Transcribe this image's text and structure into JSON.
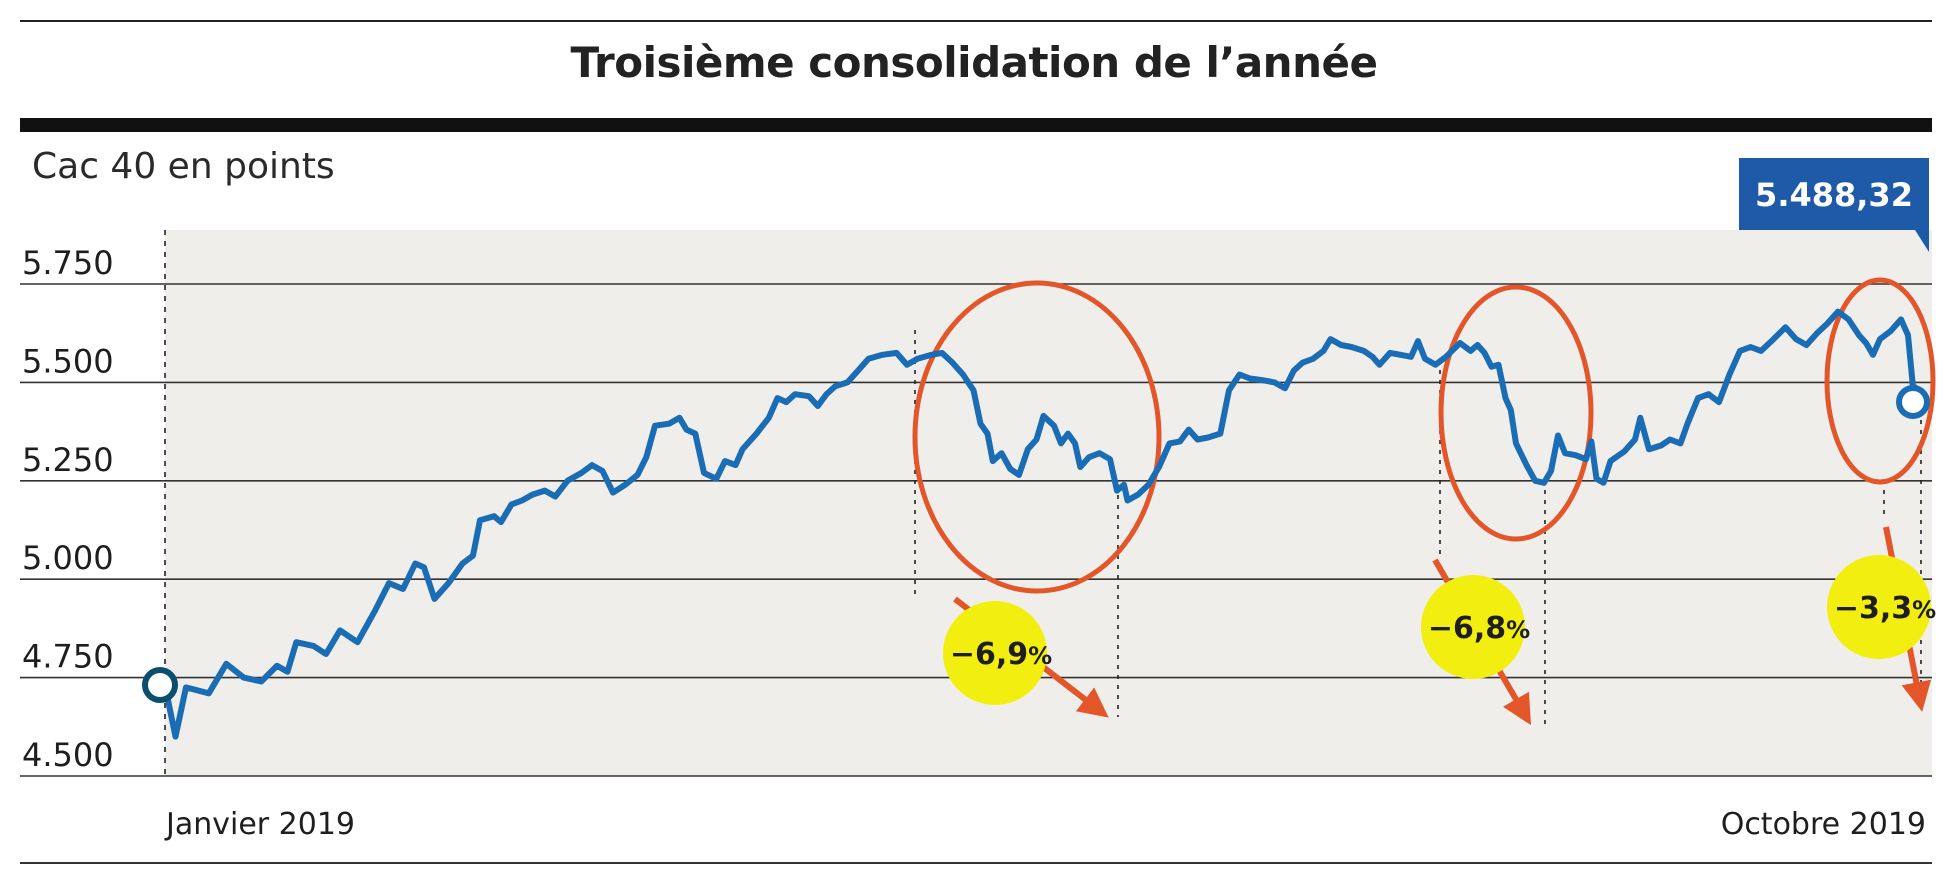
{
  "header": {
    "title": "Troisième consolidation de l’année",
    "unit_label": "Cac 40 en points"
  },
  "colors": {
    "line": "#1a6db5",
    "plot_background": "#efeeeb",
    "circle": "#e2562a",
    "badge": "#f2ee0f",
    "value_box": "#1f5aa8",
    "marker": "#0b4f6c"
  },
  "chart_data": {
    "type": "line",
    "title": "Troisième consolidation de l’année",
    "ylabel": "Cac 40 en points",
    "ylim": [
      4500,
      5750
    ],
    "y_ticks": [
      {
        "value": 4500,
        "label": "4.500"
      },
      {
        "value": 4750,
        "label": "4.750"
      },
      {
        "value": 5000,
        "label": "5.000"
      },
      {
        "value": 5250,
        "label": "5.250"
      },
      {
        "value": 5500,
        "label": "5.500"
      },
      {
        "value": 5750,
        "label": "5.750"
      }
    ],
    "grid": true,
    "x_labels": {
      "start": "Janvier 2019",
      "end": "Octobre 2019"
    },
    "x_range": [
      "2019-01-02",
      "2019-10-09"
    ],
    "series": [
      {
        "values": [
          [
            0.0,
            4730
          ],
          [
            0.6,
            4600
          ],
          [
            1.2,
            4725
          ],
          [
            2.5,
            4710
          ],
          [
            3.5,
            4785
          ],
          [
            4.5,
            4750
          ],
          [
            5.5,
            4740
          ],
          [
            6.4,
            4780
          ],
          [
            7.0,
            4765
          ],
          [
            7.5,
            4840
          ],
          [
            8.5,
            4830
          ],
          [
            9.2,
            4810
          ],
          [
            10.0,
            4870
          ],
          [
            11.0,
            4840
          ],
          [
            12.0,
            4920
          ],
          [
            12.8,
            4990
          ],
          [
            13.6,
            4975
          ],
          [
            14.3,
            5040
          ],
          [
            14.8,
            5030
          ],
          [
            15.4,
            4950
          ],
          [
            16.2,
            4990
          ],
          [
            17.0,
            5040
          ],
          [
            17.6,
            5060
          ],
          [
            18.0,
            5150
          ],
          [
            18.8,
            5160
          ],
          [
            19.2,
            5145
          ],
          [
            19.8,
            5190
          ],
          [
            20.4,
            5200
          ],
          [
            21.0,
            5215
          ],
          [
            21.7,
            5225
          ],
          [
            22.3,
            5210
          ],
          [
            23.0,
            5250
          ],
          [
            23.8,
            5270
          ],
          [
            24.4,
            5290
          ],
          [
            25.0,
            5275
          ],
          [
            25.6,
            5220
          ],
          [
            26.3,
            5240
          ],
          [
            27.0,
            5265
          ],
          [
            27.5,
            5310
          ],
          [
            28.0,
            5390
          ],
          [
            28.8,
            5395
          ],
          [
            29.4,
            5410
          ],
          [
            29.8,
            5380
          ],
          [
            30.3,
            5370
          ],
          [
            30.8,
            5270
          ],
          [
            31.5,
            5255
          ],
          [
            32.0,
            5300
          ],
          [
            32.6,
            5290
          ],
          [
            33.0,
            5330
          ],
          [
            33.8,
            5370
          ],
          [
            34.5,
            5410
          ],
          [
            35.0,
            5460
          ],
          [
            35.5,
            5450
          ],
          [
            36.0,
            5470
          ],
          [
            36.8,
            5465
          ],
          [
            37.3,
            5440
          ],
          [
            37.8,
            5470
          ],
          [
            38.3,
            5490
          ],
          [
            39.0,
            5500
          ],
          [
            39.6,
            5530
          ],
          [
            40.2,
            5560
          ],
          [
            41.0,
            5570
          ],
          [
            41.8,
            5575
          ],
          [
            42.4,
            5545
          ],
          [
            43.0,
            5560
          ],
          [
            43.8,
            5570
          ],
          [
            44.4,
            5575
          ],
          [
            45.0,
            5550
          ],
          [
            45.6,
            5520
          ],
          [
            46.2,
            5480
          ],
          [
            46.6,
            5395
          ],
          [
            47.0,
            5370
          ],
          [
            47.3,
            5300
          ],
          [
            47.8,
            5320
          ],
          [
            48.3,
            5280
          ],
          [
            48.8,
            5265
          ],
          [
            49.3,
            5330
          ],
          [
            49.8,
            5355
          ],
          [
            50.2,
            5415
          ],
          [
            50.8,
            5390
          ],
          [
            51.2,
            5345
          ],
          [
            51.6,
            5370
          ],
          [
            52.0,
            5345
          ],
          [
            52.3,
            5285
          ],
          [
            52.8,
            5310
          ],
          [
            53.4,
            5320
          ],
          [
            54.0,
            5305
          ],
          [
            54.4,
            5225
          ],
          [
            54.8,
            5240
          ],
          [
            55.0,
            5200
          ],
          [
            55.6,
            5215
          ],
          [
            56.2,
            5240
          ],
          [
            56.8,
            5285
          ],
          [
            57.4,
            5345
          ],
          [
            58.0,
            5350
          ],
          [
            58.5,
            5380
          ],
          [
            59.0,
            5355
          ],
          [
            59.6,
            5360
          ],
          [
            60.3,
            5370
          ],
          [
            60.8,
            5480
          ],
          [
            61.4,
            5520
          ],
          [
            62.0,
            5510
          ],
          [
            62.8,
            5505
          ],
          [
            63.4,
            5500
          ],
          [
            64.0,
            5485
          ],
          [
            64.5,
            5530
          ],
          [
            65.0,
            5550
          ],
          [
            65.6,
            5560
          ],
          [
            66.2,
            5580
          ],
          [
            66.6,
            5610
          ],
          [
            67.2,
            5595
          ],
          [
            67.8,
            5590
          ],
          [
            68.5,
            5580
          ],
          [
            69.0,
            5565
          ],
          [
            69.4,
            5545
          ],
          [
            70.0,
            5575
          ],
          [
            70.6,
            5570
          ],
          [
            71.2,
            5565
          ],
          [
            71.6,
            5605
          ],
          [
            72.0,
            5560
          ],
          [
            72.6,
            5545
          ],
          [
            73.2,
            5565
          ],
          [
            74.0,
            5600
          ],
          [
            74.6,
            5580
          ],
          [
            75.0,
            5595
          ],
          [
            75.4,
            5575
          ],
          [
            75.8,
            5540
          ],
          [
            76.2,
            5545
          ],
          [
            76.6,
            5460
          ],
          [
            76.9,
            5430
          ],
          [
            77.2,
            5345
          ],
          [
            77.8,
            5290
          ],
          [
            78.3,
            5250
          ],
          [
            78.8,
            5245
          ],
          [
            79.2,
            5275
          ],
          [
            79.6,
            5365
          ],
          [
            80.0,
            5320
          ],
          [
            80.6,
            5315
          ],
          [
            81.2,
            5305
          ],
          [
            81.5,
            5350
          ],
          [
            81.8,
            5255
          ],
          [
            82.2,
            5245
          ],
          [
            82.6,
            5300
          ],
          [
            83.4,
            5325
          ],
          [
            84.0,
            5355
          ],
          [
            84.3,
            5410
          ],
          [
            84.8,
            5330
          ],
          [
            85.5,
            5340
          ],
          [
            86.0,
            5355
          ],
          [
            86.6,
            5345
          ],
          [
            87.0,
            5395
          ],
          [
            87.6,
            5460
          ],
          [
            88.2,
            5470
          ],
          [
            88.8,
            5450
          ],
          [
            89.4,
            5520
          ],
          [
            90.0,
            5580
          ],
          [
            90.6,
            5590
          ],
          [
            91.2,
            5580
          ],
          [
            91.8,
            5605
          ],
          [
            92.6,
            5640
          ],
          [
            93.2,
            5610
          ],
          [
            93.8,
            5595
          ],
          [
            94.4,
            5625
          ],
          [
            95.0,
            5650
          ],
          [
            95.6,
            5680
          ],
          [
            96.2,
            5660
          ],
          [
            96.8,
            5620
          ],
          [
            97.2,
            5600
          ],
          [
            97.6,
            5570
          ],
          [
            98.0,
            5610
          ],
          [
            98.6,
            5630
          ],
          [
            99.2,
            5660
          ],
          [
            99.6,
            5620
          ],
          [
            99.9,
            5480
          ],
          [
            100.0,
            5488
          ]
        ]
      }
    ],
    "start_marker": [
      0,
      4730
    ],
    "last_value": {
      "value": 5488.32,
      "label": "5.488,32"
    },
    "annotations": [
      {
        "label": "-6,9",
        "suffix": "%",
        "x_start": 43.8,
        "x_end": 55.0
      },
      {
        "label": "-6,8",
        "suffix": "%",
        "x_start": 74.6,
        "x_end": 78.8
      },
      {
        "label": "-3,3",
        "suffix": "%",
        "x_start": 99.2,
        "x_end": 100.0
      }
    ]
  }
}
